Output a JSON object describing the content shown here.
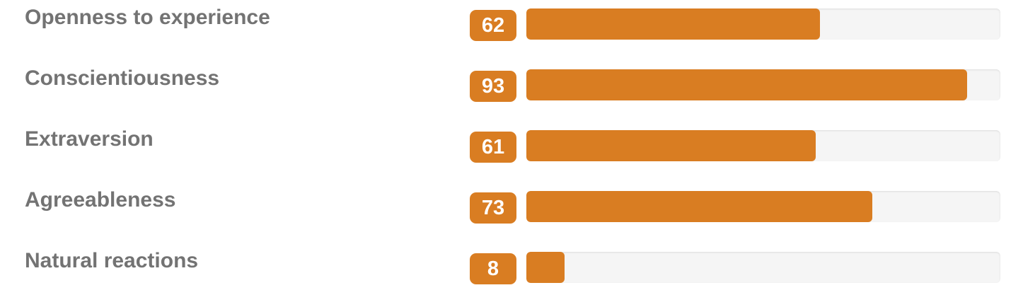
{
  "chart_data": {
    "type": "bar",
    "orientation": "horizontal",
    "categories": [
      "Openness to experience",
      "Conscientiousness",
      "Extraversion",
      "Agreeableness",
      "Natural reactions"
    ],
    "values": [
      62,
      93,
      61,
      73,
      8
    ],
    "xlim": [
      0,
      100
    ],
    "value_labels": [
      "62",
      "93",
      "61",
      "73",
      "8"
    ],
    "grid": false,
    "legend": "none",
    "colors": {
      "bar": "#d97d22",
      "badge": "#d97d22",
      "track": "#f5f5f5",
      "label": "#737373"
    }
  }
}
